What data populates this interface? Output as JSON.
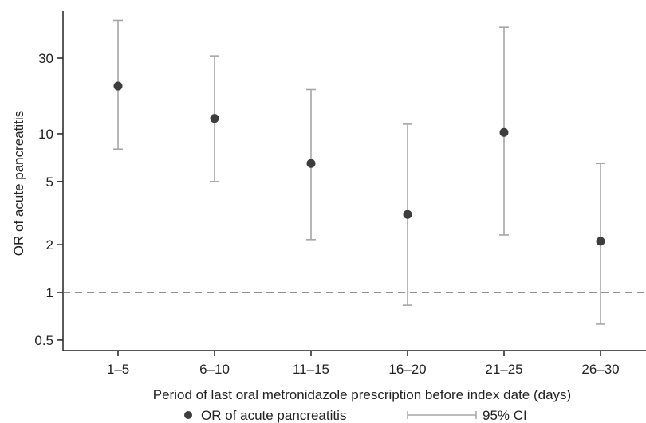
{
  "chart_data": {
    "type": "scatter",
    "title": "",
    "xlabel": "Period of last oral metronidazole prescription before index date (days)",
    "ylabel": "OR of acute pancreatitis",
    "yscale": "log",
    "ylim": [
      0.45,
      70
    ],
    "yticks": [
      {
        "value": 0.5,
        "label": "0.5"
      },
      {
        "value": 1,
        "label": "1"
      },
      {
        "value": 2,
        "label": "2"
      },
      {
        "value": 5,
        "label": "5"
      },
      {
        "value": 10,
        "label": "10"
      },
      {
        "value": 30,
        "label": "30"
      }
    ],
    "categories": [
      "1–5",
      "6–10",
      "11–15",
      "16–20",
      "21–25",
      "26–30"
    ],
    "series": [
      {
        "name": "OR of acute pancreatitis",
        "values": [
          20.0,
          12.5,
          6.5,
          3.1,
          10.2,
          2.1
        ],
        "ci_lower": [
          8.0,
          5.0,
          2.15,
          0.83,
          2.3,
          0.63
        ],
        "ci_upper": [
          52.0,
          31.0,
          19.0,
          11.5,
          47.0,
          6.5
        ]
      }
    ],
    "reference_line": {
      "value": 1,
      "style": "dashed"
    },
    "legend": {
      "position": "bottom",
      "point_label": "OR of acute pancreatitis",
      "ci_label": "95% CI"
    },
    "grid": false,
    "colors": {
      "point": "#3d3d3d",
      "errorbar": "#a6a6a6",
      "reference": "#6e6e6e",
      "axis": "#222222"
    }
  }
}
